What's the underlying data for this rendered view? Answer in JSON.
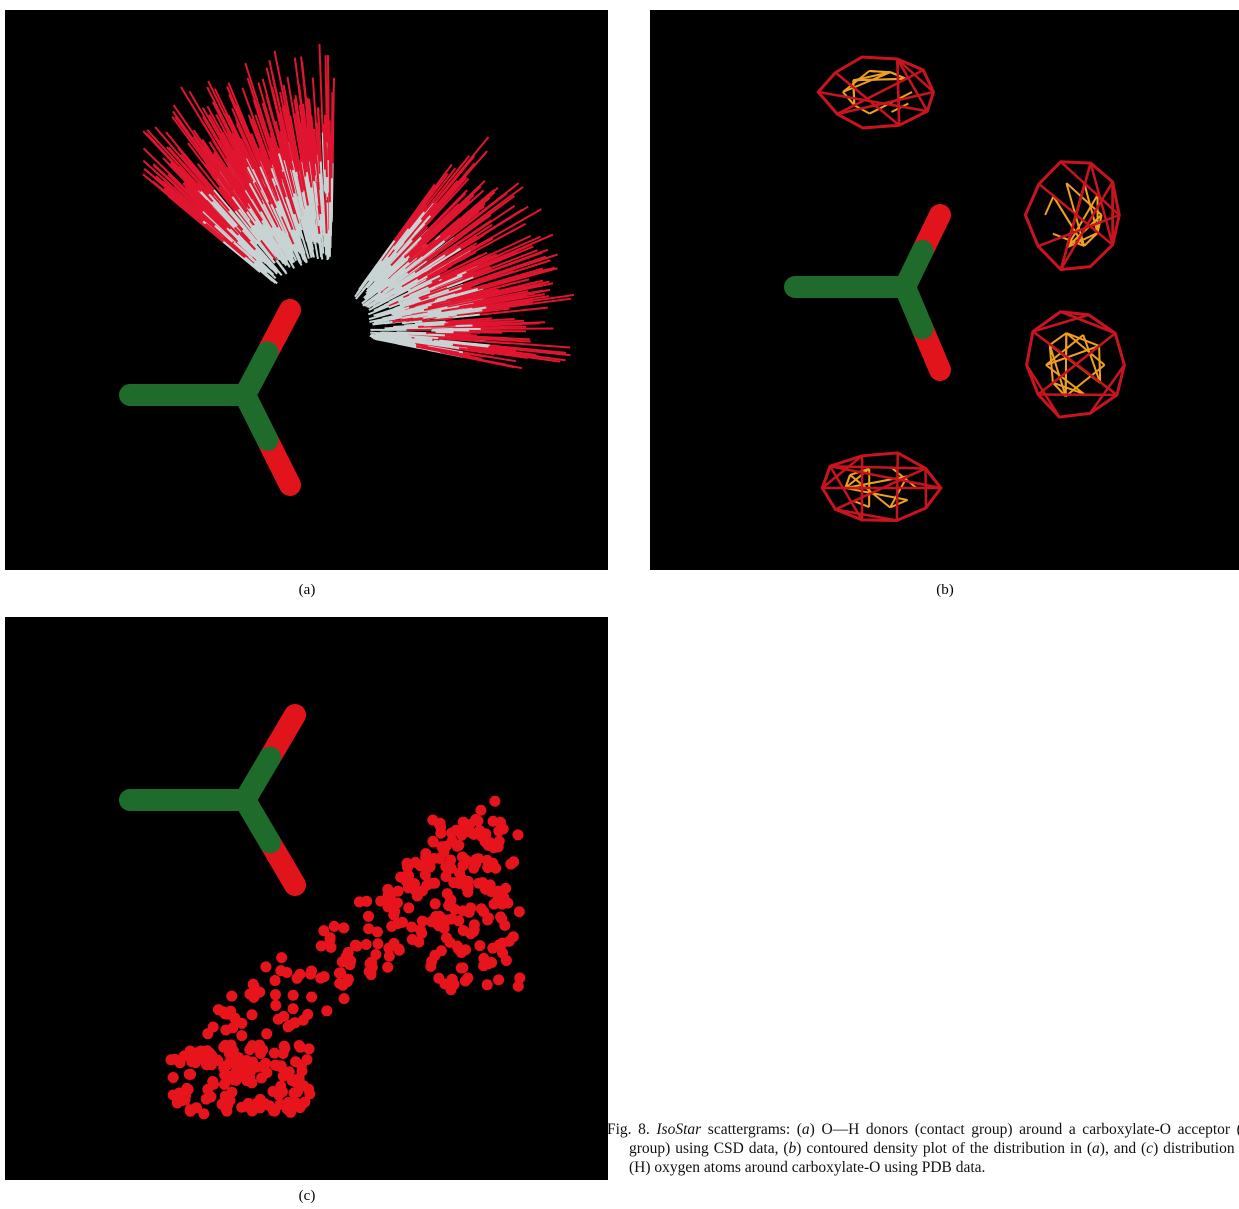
{
  "figure": {
    "panels": [
      {
        "label": "(a)"
      },
      {
        "label": "(b)"
      },
      {
        "label": "(c)"
      }
    ],
    "caption": [
      "Fig. 8. ",
      "IsoStar",
      " scattergrams: (",
      "a",
      ") O—H donors (contact group) around a carboxylate-O acceptor (central group) using CSD data, (",
      "b",
      ") contoured density plot of the distribution in (",
      "a",
      "), and (",
      "c",
      ") distribution of O—(H) oxygen atoms around carboxylate-O using PDB data."
    ]
  }
}
